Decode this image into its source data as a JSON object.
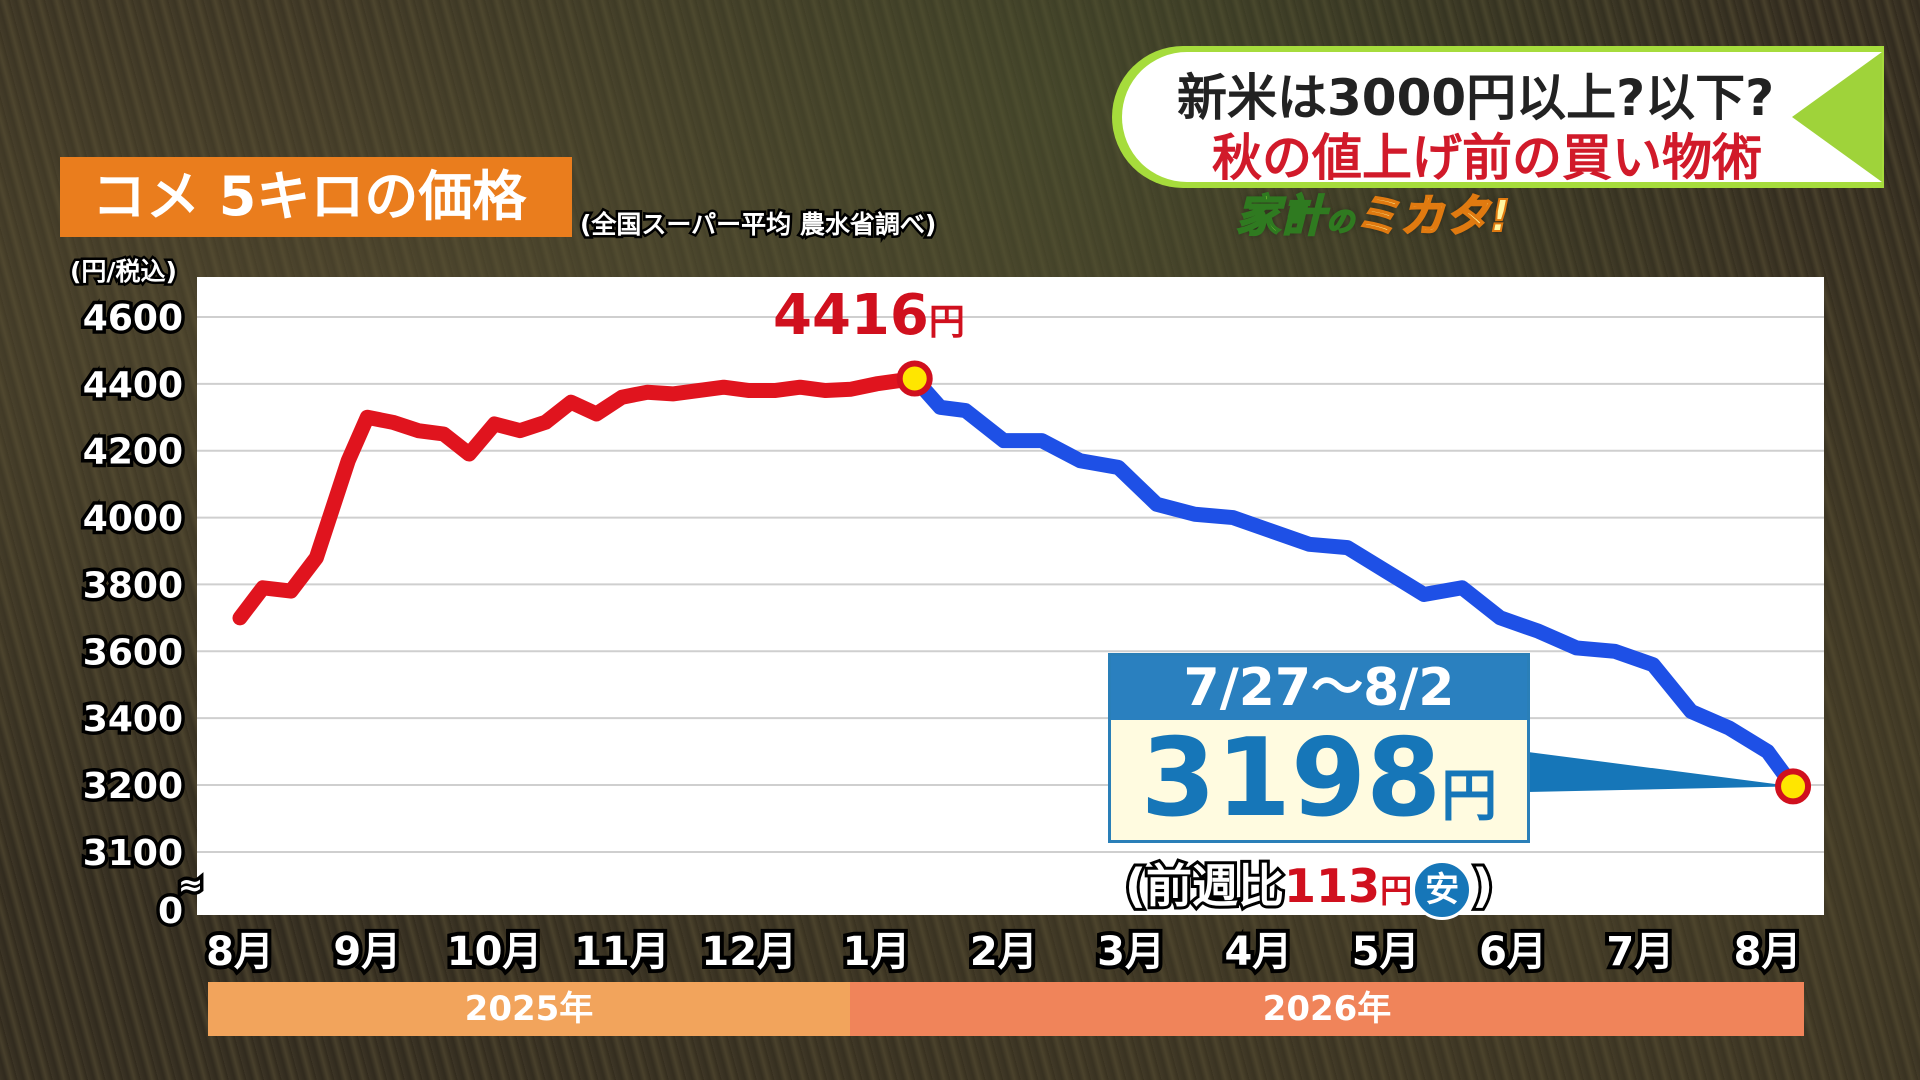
{
  "headline": {
    "line1": "新米は3000円以上?以下?",
    "line2": "秋の値上げ前の買い物術",
    "logo_green": "家計",
    "logo_no": "の",
    "logo_orange": "ミカタ!"
  },
  "title": "コメ 5キロの価格",
  "subtitle": "(全国スーパー平均 農水省調べ)",
  "unit": "(円/税込)",
  "peak": {
    "value": "4416",
    "unit": "円"
  },
  "latest": {
    "period": "7/27〜8/2",
    "value": "3198",
    "unit": "円",
    "compare_prefix": "(前週比",
    "compare_value": "113",
    "compare_unit": "円",
    "compare_badge": "安",
    "compare_suffix": ")"
  },
  "years": {
    "y2025": "2025年",
    "y2026": "2026年"
  },
  "colors": {
    "rise": "#e0141e",
    "fall": "#1e50e6",
    "marker_fill": "#ffe600",
    "marker_ring": "#d0101e",
    "accent_orange": "#ea7d1d"
  },
  "chart_data": {
    "type": "line",
    "title": "コメ 5キロの価格",
    "ylabel": "(円/税込)",
    "ylim": [
      3100,
      4600
    ],
    "y_ticks": [
      4600,
      4400,
      4200,
      4000,
      3800,
      3600,
      3400,
      3200,
      3100,
      0
    ],
    "y_break": true,
    "x_tick_labels": [
      "8月",
      "9月",
      "10月",
      "11月",
      "12月",
      "1月",
      "2月",
      "3月",
      "4月",
      "5月",
      "6月",
      "7月",
      "8月"
    ],
    "grid": true,
    "series": [
      {
        "segment": "rise",
        "x": [
          0.0,
          0.18,
          0.4,
          0.6,
          0.85,
          1.0,
          1.2,
          1.4,
          1.6,
          1.8,
          2.0,
          2.2,
          2.4,
          2.6,
          2.8,
          3.0,
          3.2,
          3.4,
          3.6,
          3.8,
          4.0,
          4.2,
          4.4,
          4.6,
          4.8,
          5.0,
          5.3
        ],
        "values": [
          3700,
          3790,
          3780,
          3880,
          4170,
          4300,
          4285,
          4260,
          4250,
          4190,
          4280,
          4260,
          4285,
          4345,
          4310,
          4360,
          4375,
          4370,
          4380,
          4390,
          4380,
          4380,
          4390,
          4380,
          4384,
          4400,
          4416
        ]
      },
      {
        "segment": "fall",
        "x": [
          5.3,
          5.5,
          5.7,
          6.0,
          6.3,
          6.6,
          6.9,
          7.2,
          7.5,
          7.8,
          8.1,
          8.4,
          8.7,
          9.0,
          9.3,
          9.6,
          9.9,
          10.2,
          10.5,
          10.8,
          11.1,
          11.4,
          11.7,
          12.0,
          12.2
        ],
        "values": [
          4416,
          4330,
          4320,
          4230,
          4230,
          4170,
          4150,
          4040,
          4010,
          4000,
          3960,
          3920,
          3910,
          3840,
          3770,
          3790,
          3700,
          3660,
          3610,
          3600,
          3560,
          3420,
          3370,
          3300,
          3198
        ]
      }
    ],
    "annotations": [
      {
        "label": "4416円",
        "x": 5.3,
        "y": 4416
      },
      {
        "label": "3198円",
        "x": 12.2,
        "y": 3198
      }
    ]
  }
}
